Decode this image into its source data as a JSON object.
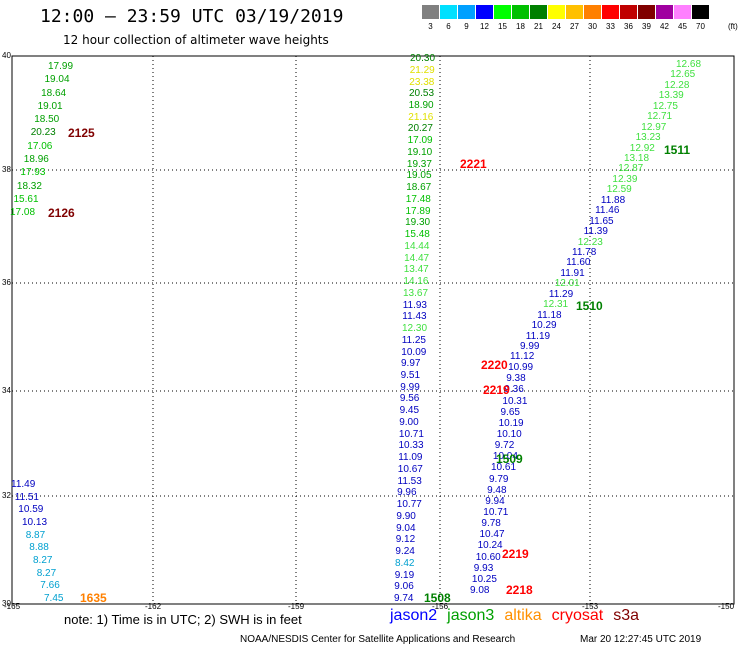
{
  "header": {
    "title": "12:00 — 23:59 UTC 03/19/2019",
    "subtitle": "12 hour collection of altimeter wave heights"
  },
  "colorbar": {
    "unit": "(ft)",
    "stops": [
      {
        "label": "3",
        "color": "#808080"
      },
      {
        "label": "6",
        "color": "#00e0ff"
      },
      {
        "label": "9",
        "color": "#00a0ff"
      },
      {
        "label": "12",
        "color": "#0000ff"
      },
      {
        "label": "15",
        "color": "#00ff00"
      },
      {
        "label": "18",
        "color": "#00c000"
      },
      {
        "label": "21",
        "color": "#008000"
      },
      {
        "label": "24",
        "color": "#ffff00"
      },
      {
        "label": "27",
        "color": "#ffc000"
      },
      {
        "label": "30",
        "color": "#ff8000"
      },
      {
        "label": "33",
        "color": "#ff0000"
      },
      {
        "label": "36",
        "color": "#c00000"
      },
      {
        "label": "39",
        "color": "#800000"
      },
      {
        "label": "42",
        "color": "#a000a0"
      },
      {
        "label": "45",
        "color": "#ff80ff"
      },
      {
        "label": "70",
        "color": "#000000"
      }
    ],
    "top_swatch": "#000000"
  },
  "axes": {
    "lat_labels": [
      "40",
      "38",
      "36",
      "34",
      "32",
      "30"
    ],
    "lon_labels": [
      "-165",
      "-162",
      "-159",
      "-156",
      "-153",
      "-150"
    ],
    "lat_range": [
      30,
      40
    ],
    "lon_range": [
      -165,
      -150
    ]
  },
  "tracks": [
    {
      "name": "w1",
      "points": [
        [
          "17.99",
          "#00a000"
        ],
        [
          "19.04",
          "#00a000"
        ],
        [
          "18.64",
          "#00a000"
        ],
        [
          "19.01",
          "#00a000"
        ],
        [
          "18.50",
          "#00a000"
        ],
        [
          "20.23",
          "#008000"
        ],
        [
          "17.06",
          "#00c000"
        ],
        [
          "18.96",
          "#00a000"
        ],
        [
          "17.93",
          "#00c000"
        ],
        [
          "18.32",
          "#00a000"
        ],
        [
          "15.61",
          "#00c000"
        ],
        [
          "17.08",
          "#00c000"
        ]
      ]
    },
    {
      "name": "w2",
      "points": [
        [
          "11.49",
          "#0000c0"
        ],
        [
          "11.51",
          "#0000c0"
        ],
        [
          "10.59",
          "#0000c0"
        ],
        [
          "10.13",
          "#0000c0"
        ],
        [
          "8.87",
          "#00a0d0"
        ],
        [
          "8.88",
          "#00a0d0"
        ],
        [
          "8.27",
          "#00a0d0"
        ],
        [
          "8.27",
          "#00a0d0"
        ],
        [
          "7.66",
          "#00a0d0"
        ],
        [
          "7.45",
          "#00a0d0"
        ]
      ]
    },
    {
      "name": "c1",
      "points": [
        [
          "20.30",
          "#008000"
        ],
        [
          "21.29",
          "#e0e000"
        ],
        [
          "23.38",
          "#e0e000"
        ],
        [
          "20.53",
          "#008000"
        ],
        [
          "18.90",
          "#00a000"
        ],
        [
          "21.16",
          "#e0e000"
        ],
        [
          "20.27",
          "#008000"
        ],
        [
          "17.09",
          "#00c000"
        ],
        [
          "19.10",
          "#00a000"
        ],
        [
          "19.37",
          "#00a000"
        ],
        [
          "19.05",
          "#00a000"
        ],
        [
          "18.67",
          "#00a000"
        ],
        [
          "17.48",
          "#00c000"
        ],
        [
          "17.89",
          "#00c000"
        ],
        [
          "19.30",
          "#00a000"
        ],
        [
          "15.48",
          "#00c000"
        ],
        [
          "14.44",
          "#40e040"
        ],
        [
          "14.47",
          "#40e040"
        ],
        [
          "13.47",
          "#40e040"
        ],
        [
          "14.16",
          "#40e040"
        ],
        [
          "13.67",
          "#40e040"
        ],
        [
          "11.93",
          "#0000c0"
        ],
        [
          "11.43",
          "#0000c0"
        ],
        [
          "12.30",
          "#40e040"
        ],
        [
          "11.25",
          "#0000c0"
        ],
        [
          "10.09",
          "#0000c0"
        ],
        [
          "9.97",
          "#0000c0"
        ],
        [
          "9.51",
          "#0000c0"
        ],
        [
          "9.99",
          "#0000c0"
        ],
        [
          "9.56",
          "#0000c0"
        ],
        [
          "9.45",
          "#0000c0"
        ],
        [
          "9.00",
          "#0000c0"
        ],
        [
          "10.71",
          "#0000c0"
        ],
        [
          "10.33",
          "#0000c0"
        ],
        [
          "11.09",
          "#0000c0"
        ],
        [
          "10.67",
          "#0000c0"
        ],
        [
          "11.53",
          "#0000c0"
        ],
        [
          "9.96",
          "#0000c0"
        ],
        [
          "10.77",
          "#0000c0"
        ],
        [
          "9.90",
          "#0000c0"
        ],
        [
          "9.04",
          "#0000c0"
        ],
        [
          "9.12",
          "#0000c0"
        ],
        [
          "9.24",
          "#0000c0"
        ],
        [
          "8.42",
          "#00a0d0"
        ],
        [
          "9.19",
          "#0000c0"
        ],
        [
          "9.06",
          "#0000c0"
        ],
        [
          "9.74",
          "#0000c0"
        ]
      ]
    },
    {
      "name": "c2",
      "points": [
        [
          "11.12",
          "#0000c0"
        ],
        [
          "10.99",
          "#0000c0"
        ],
        [
          "9.38",
          "#0000c0"
        ],
        [
          "9.36",
          "#0000c0"
        ],
        [
          "10.31",
          "#0000c0"
        ],
        [
          "9.65",
          "#0000c0"
        ],
        [
          "10.19",
          "#0000c0"
        ],
        [
          "10.10",
          "#0000c0"
        ],
        [
          "9.72",
          "#0000c0"
        ],
        [
          "10.04",
          "#0000c0"
        ],
        [
          "10.61",
          "#0000c0"
        ],
        [
          "9.79",
          "#0000c0"
        ],
        [
          "9.48",
          "#0000c0"
        ],
        [
          "9.94",
          "#0000c0"
        ],
        [
          "10.71",
          "#0000c0"
        ],
        [
          "9.78",
          "#0000c0"
        ],
        [
          "10.47",
          "#0000c0"
        ],
        [
          "10.24",
          "#0000c0"
        ],
        [
          "10.60",
          "#0000c0"
        ],
        [
          "9.93",
          "#0000c0"
        ],
        [
          "10.25",
          "#0000c0"
        ],
        [
          "9.08",
          "#0000c0"
        ]
      ]
    },
    {
      "name": "e1",
      "points": [
        [
          "12.68",
          "#40e040"
        ],
        [
          "12.65",
          "#40e040"
        ],
        [
          "12.28",
          "#40e040"
        ],
        [
          "13.39",
          "#40e040"
        ],
        [
          "12.75",
          "#40e040"
        ],
        [
          "12.71",
          "#40e040"
        ],
        [
          "12.97",
          "#40e040"
        ],
        [
          "13.23",
          "#40e040"
        ],
        [
          "12.92",
          "#40e040"
        ],
        [
          "13.18",
          "#40e040"
        ],
        [
          "12.87",
          "#40e040"
        ],
        [
          "12.39",
          "#40e040"
        ],
        [
          "12.59",
          "#40e040"
        ],
        [
          "11.88",
          "#0000c0"
        ],
        [
          "11.46",
          "#0000c0"
        ],
        [
          "11.65",
          "#0000c0"
        ],
        [
          "11.39",
          "#0000c0"
        ],
        [
          "12.23",
          "#40e040"
        ],
        [
          "11.78",
          "#0000c0"
        ],
        [
          "11.60",
          "#0000c0"
        ],
        [
          "11.91",
          "#0000c0"
        ],
        [
          "12.01",
          "#40e040"
        ],
        [
          "11.29",
          "#0000c0"
        ],
        [
          "12.31",
          "#40e040"
        ],
        [
          "11.18",
          "#0000c0"
        ],
        [
          "10.29",
          "#0000c0"
        ],
        [
          "11.19",
          "#0000c0"
        ],
        [
          "9.99",
          "#0000c0"
        ]
      ]
    }
  ],
  "time_labels": [
    {
      "text": "2125",
      "color": "#800000"
    },
    {
      "text": "2126",
      "color": "#800000"
    },
    {
      "text": "1635",
      "color": "#ff8000"
    },
    {
      "text": "2221",
      "color": "#ff0000"
    },
    {
      "text": "1511",
      "color": "#008000"
    },
    {
      "text": "1510",
      "color": "#008000"
    },
    {
      "text": "2220",
      "color": "#ff0000"
    },
    {
      "text": "2219",
      "color": "#ff0000"
    },
    {
      "text": "1509",
      "color": "#008000"
    },
    {
      "text": "2219",
      "color": "#ff0000"
    },
    {
      "text": "2218",
      "color": "#ff0000"
    },
    {
      "text": "1508",
      "color": "#008000"
    }
  ],
  "footer": {
    "note": "note:  1) Time is in UTC;  2) SWH is in feet",
    "legend": [
      {
        "text": "jason2",
        "color": "#0000ff"
      },
      {
        "text": "jason3",
        "color": "#00a000"
      },
      {
        "text": "altika",
        "color": "#ff9000"
      },
      {
        "text": "cryosat",
        "color": "#ff0000"
      },
      {
        "text": "s3a",
        "color": "#800000"
      }
    ],
    "credit": "NOAA/NESDIS Center for Satellite Applications and Research",
    "timestamp": "Mar 20 12:27:45 UTC 2019"
  }
}
